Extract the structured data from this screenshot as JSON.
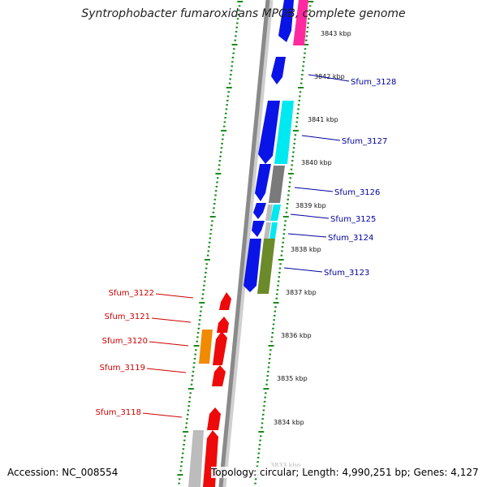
{
  "title": "Syntrophobacter fumaroxidans MPOB, complete genome",
  "accession": "Accession: NC_008554",
  "summary": "Topology: circular; Length: 4,990,251 bp; Genes: 4,127",
  "colors": {
    "backbone": "#8a8a8a",
    "tick": "#1a8a1a",
    "forward_label": "#00009c",
    "reverse_label": "#cc0000",
    "blue": "#0a14e6",
    "red": "#ee0a0a",
    "orange": "#f08a00",
    "cyan": "#00e8f0",
    "gray": "#7a7a7a",
    "lightgray": "#bcbcbc",
    "olive": "#6b8a2a",
    "magenta": "#ff2aa0"
  },
  "kbp_labels": [
    "3843 kbp",
    "3842 kbp",
    "3841 kbp",
    "3840 kbp",
    "3839 kbp",
    "3838 kbp",
    "3837 kbp",
    "3836 kbp",
    "3835 kbp",
    "3834 kbp",
    "3833 kbp"
  ],
  "gene_labels": {
    "forward": [
      "Sfum_3128",
      "Sfum_3127",
      "Sfum_3126",
      "Sfum_3125",
      "Sfum_3124",
      "Sfum_3123"
    ],
    "reverse": [
      "Sfum_3122",
      "Sfum_3121",
      "Sfum_3120",
      "Sfum_3119",
      "Sfum_3118"
    ]
  }
}
